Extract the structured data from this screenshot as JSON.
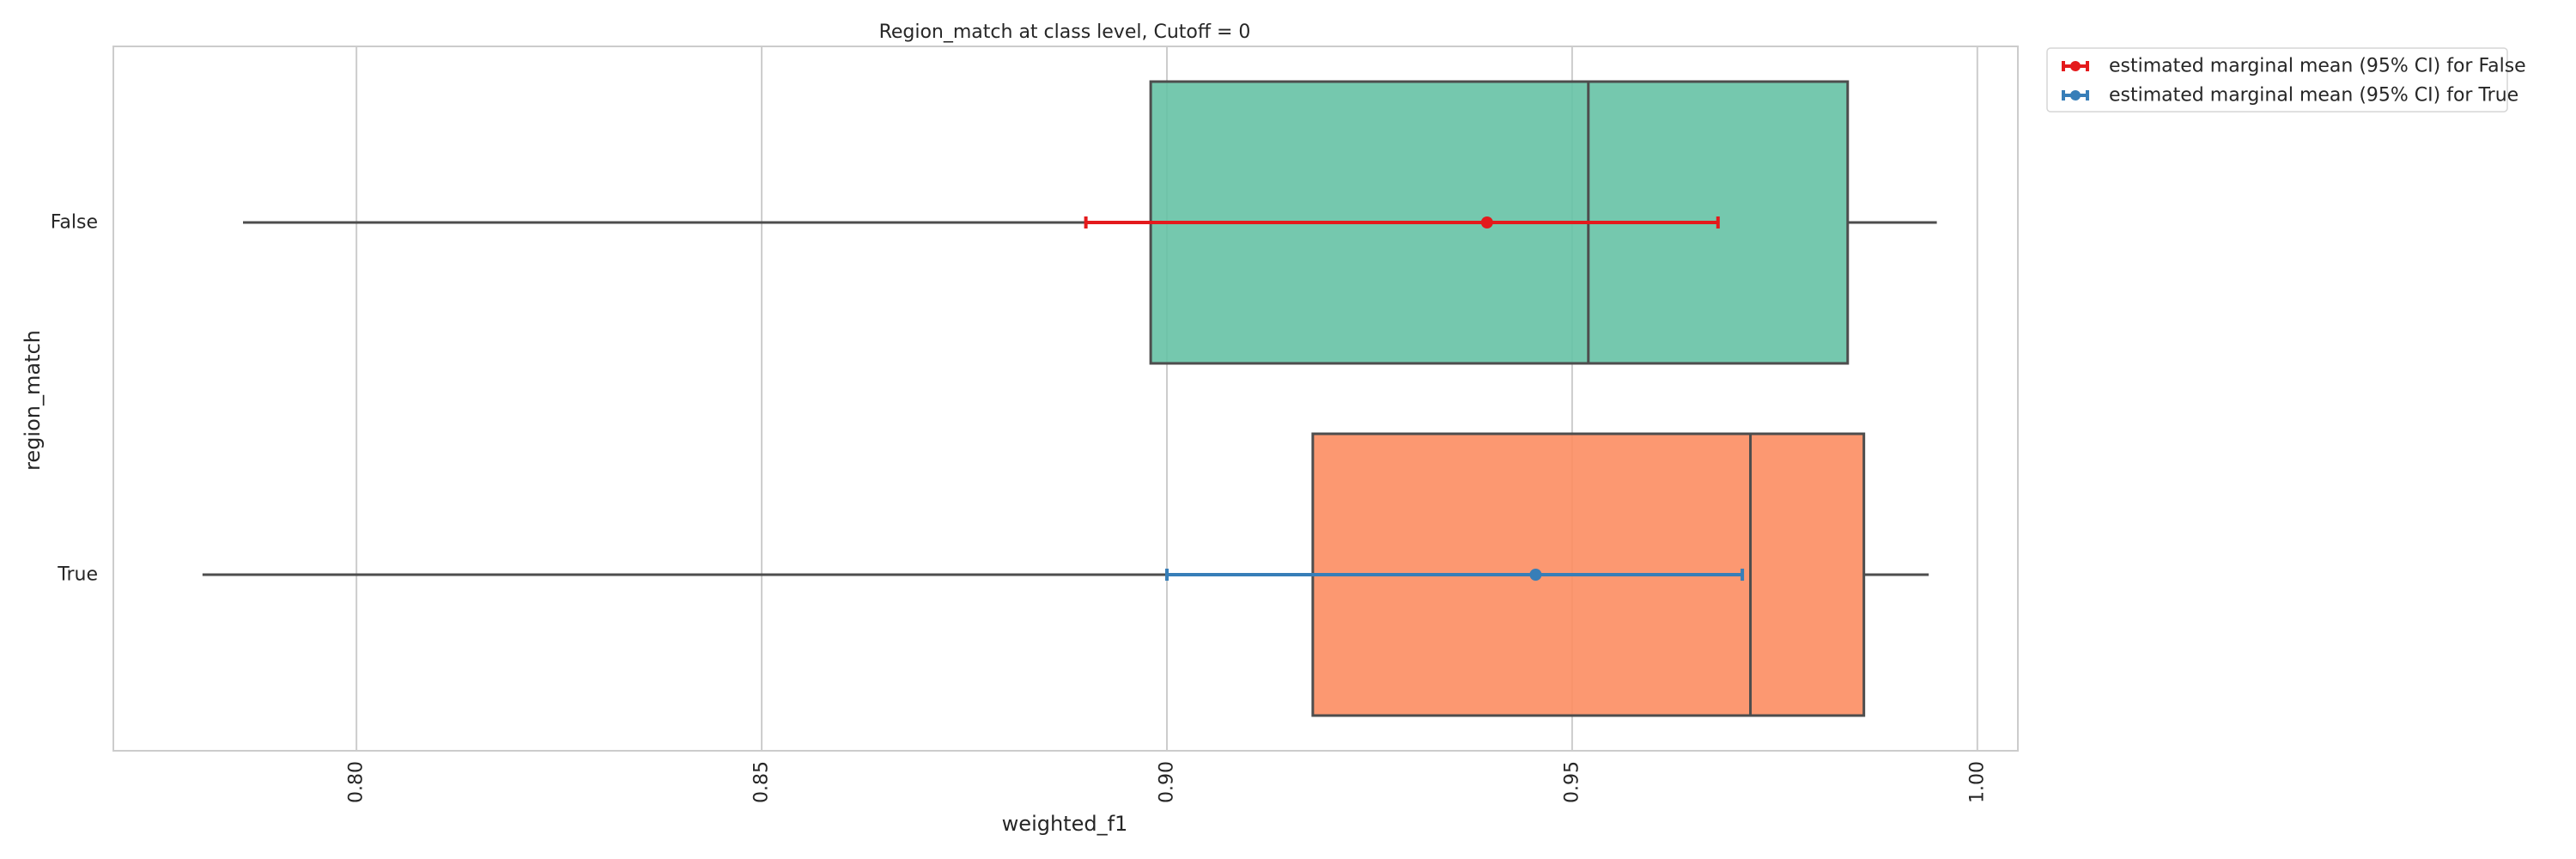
{
  "chart_data": {
    "type": "boxplot",
    "orientation": "horizontal",
    "title": "Region_match at class level, Cutoff = 0",
    "xlabel": "weighted_f1",
    "ylabel": "region_match",
    "xlim": [
      0.77,
      1.005
    ],
    "xticks": [
      0.8,
      0.85,
      0.9,
      0.95,
      1.0
    ],
    "xtick_labels": [
      "0.80",
      "0.85",
      "0.90",
      "0.95",
      "1.00"
    ],
    "grid": true,
    "legend_position": "outside-top-right",
    "categories": [
      "False",
      "True"
    ],
    "boxes": [
      {
        "category": "False",
        "whisker_low": 0.786,
        "q1": 0.898,
        "median": 0.952,
        "q3": 0.984,
        "whisker_high": 0.995,
        "color": "#66c2a5"
      },
      {
        "category": "True",
        "whisker_low": 0.781,
        "q1": 0.918,
        "median": 0.972,
        "q3": 0.986,
        "whisker_high": 0.994,
        "color": "#fc8d62"
      }
    ],
    "series": [
      {
        "name": "estimated marginal mean (95% CI) for False",
        "category": "False",
        "mean": 0.9395,
        "ci_low": 0.89,
        "ci_high": 0.968,
        "color": "#e41a1c"
      },
      {
        "name": "estimated marginal mean (95% CI) for True",
        "category": "True",
        "mean": 0.9455,
        "ci_low": 0.9,
        "ci_high": 0.971,
        "color": "#377eb8"
      }
    ]
  }
}
